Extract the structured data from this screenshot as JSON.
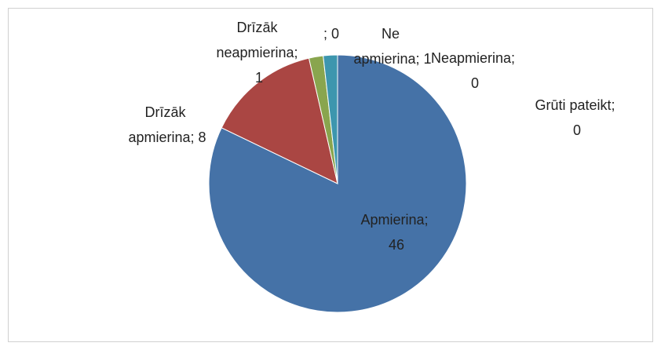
{
  "chart_data": {
    "type": "pie",
    "categories": [
      "Apmierina",
      "Drīzāk apmierina",
      "Drīzāk neapmierina",
      null,
      "Ne apmierina",
      "Neapmierina",
      "Grūti pateikt"
    ],
    "values": [
      46,
      8,
      1,
      0,
      1,
      0,
      0
    ],
    "value_labels": [
      "Apmierina; 46",
      "Drīzāk apmierina; 8",
      "Drīzāk neapmierina; 1",
      "; 0",
      "Ne apmierina; 1",
      "Neapmierina; 0",
      "Grūti pateikt; 0"
    ],
    "colors": [
      "#4572a7",
      "#aa4643",
      "#89a54e",
      "#80699b",
      "#3d96ae",
      "#db843d",
      "#92a8cd"
    ]
  }
}
